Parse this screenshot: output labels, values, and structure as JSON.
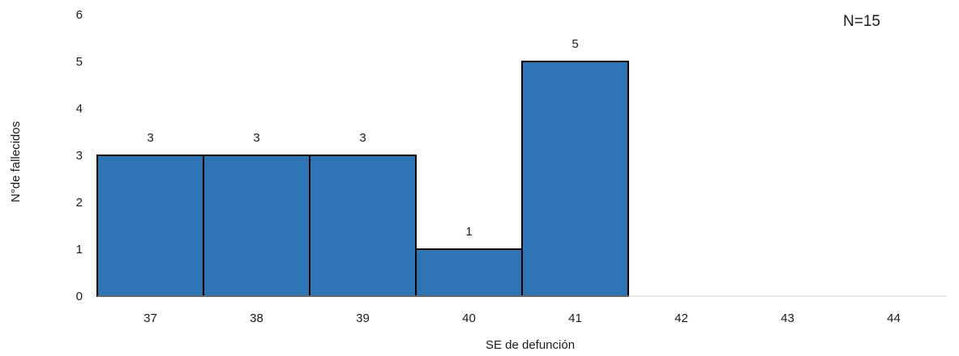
{
  "chart_data": {
    "type": "bar",
    "categories": [
      "37",
      "38",
      "39",
      "40",
      "41",
      "42",
      "43",
      "44"
    ],
    "values": [
      3,
      3,
      3,
      1,
      5,
      0,
      0,
      0
    ],
    "data_labels": [
      "3",
      "3",
      "3",
      "1",
      "5",
      "",
      "",
      ""
    ],
    "title": "",
    "xlabel": "SE de defunción",
    "ylabel": "N°de fallecidos",
    "ylim": [
      0,
      6
    ],
    "yticks": [
      0,
      1,
      2,
      3,
      4,
      5,
      6
    ],
    "annotation": "N=15",
    "grid": false,
    "legend": "none",
    "bar_color": "#2e75b6",
    "bar_edge_color": "#000000"
  }
}
